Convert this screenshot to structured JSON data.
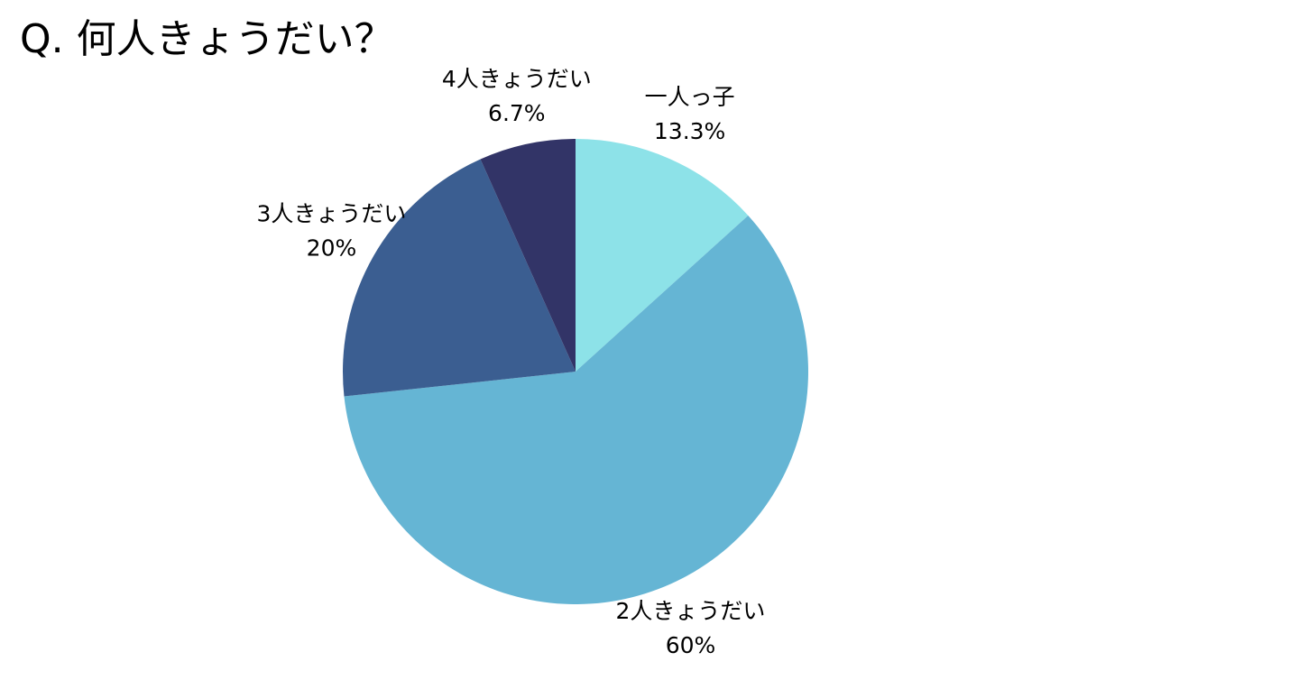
{
  "chart_data": {
    "type": "pie",
    "title": "Q. 何人きょうだい？",
    "categories": [
      "一人っ子",
      "2人きょうだい",
      "3人きょうだい",
      "4人きょうだい"
    ],
    "values": [
      13.3,
      60,
      20,
      6.7
    ],
    "value_labels": [
      "13.3%",
      "60%",
      "20%",
      "6.7%"
    ],
    "colors": [
      "#8de2e8",
      "#65b5d4",
      "#3b5e91",
      "#323467"
    ]
  }
}
